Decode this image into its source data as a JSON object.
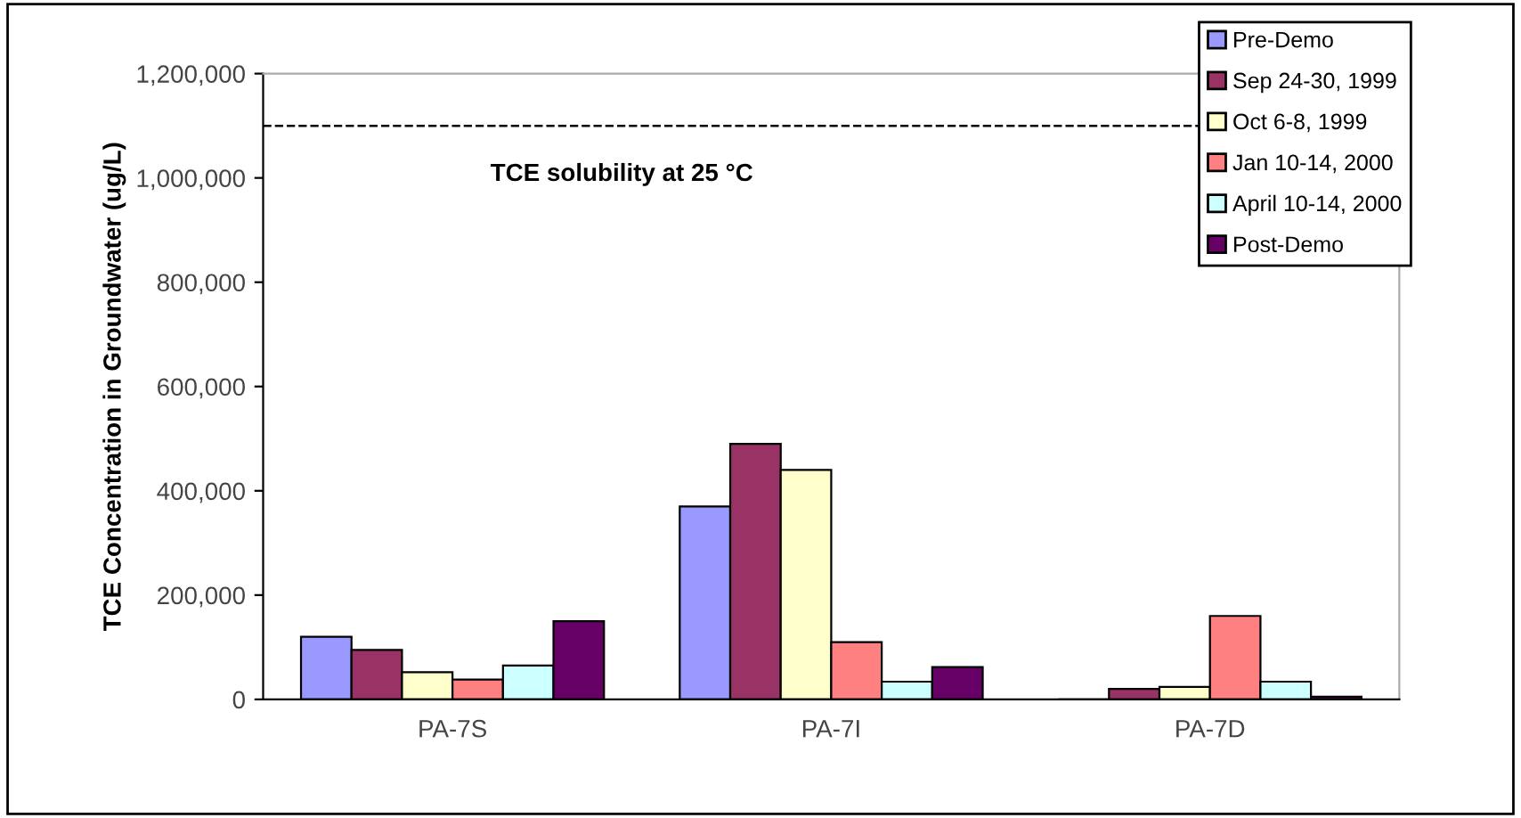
{
  "chart_data": {
    "type": "bar",
    "ylabel": "TCE Concentration in Groundwater (ug/L)",
    "categories": [
      "PA-7S",
      "PA-7I",
      "PA-7D"
    ],
    "series": [
      {
        "name": "Pre-Demo",
        "color": "#9999ff",
        "values": [
          120000,
          370000,
          0
        ]
      },
      {
        "name": "Sep 24-30, 1999",
        "color": "#993366",
        "values": [
          95000,
          490000,
          20000
        ]
      },
      {
        "name": "Oct 6-8, 1999",
        "color": "#ffffcc",
        "values": [
          52000,
          440000,
          24000
        ]
      },
      {
        "name": "Jan 10-14, 2000",
        "color": "#ff8080",
        "values": [
          38000,
          110000,
          160000
        ]
      },
      {
        "name": "April 10-14, 2000",
        "color": "#ccffff",
        "values": [
          65000,
          34000,
          34000
        ]
      },
      {
        "name": "Post-Demo",
        "color": "#660066",
        "values": [
          150000,
          62000,
          5000
        ]
      }
    ],
    "ylim": [
      0,
      1200000
    ],
    "yticks": [
      {
        "value": 0,
        "label": "0"
      },
      {
        "value": 200000,
        "label": "200,000"
      },
      {
        "value": 400000,
        "label": "400,000"
      },
      {
        "value": 600000,
        "label": "600,000"
      },
      {
        "value": 800000,
        "label": "800,000"
      },
      {
        "value": 1000000,
        "label": "1,000,000"
      },
      {
        "value": 1200000,
        "label": "1,200,000"
      }
    ],
    "ref_lines": [
      {
        "axis": "y",
        "value": 1100000,
        "label": "TCE solubility at 25 °C",
        "color": "#000000",
        "line_style": "dashed"
      }
    ],
    "grid": false,
    "legend": "top right"
  }
}
